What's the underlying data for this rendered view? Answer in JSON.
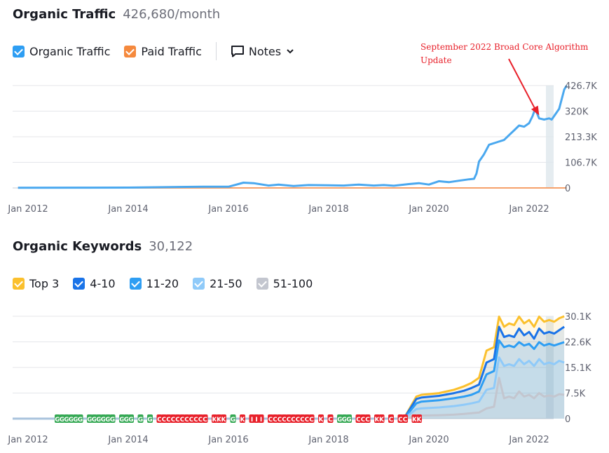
{
  "traffic": {
    "title": "Organic Traffic",
    "metric": "426,680/month",
    "legend": [
      {
        "label": "Organic Traffic",
        "color": "#2e9ef3"
      },
      {
        "label": "Paid Traffic",
        "color": "#f5893d"
      }
    ],
    "notes_label": "Notes"
  },
  "annotation": {
    "text": "September 2022 Broad Core Algorithm Update",
    "color": "#e8202a"
  },
  "keywords": {
    "title": "Organic Keywords",
    "metric": "30,122",
    "legend": [
      {
        "label": "Top 3",
        "color": "#fbc02d"
      },
      {
        "label": "4-10",
        "color": "#1a73e8"
      },
      {
        "label": "11-20",
        "color": "#2e9ef3"
      },
      {
        "label": "21-50",
        "color": "#8fcaf9"
      },
      {
        "label": "51-100",
        "color": "#c3c6cf"
      }
    ]
  },
  "chart_data": [
    {
      "type": "line",
      "title": "Organic Traffic",
      "xlabel": "",
      "ylabel": "",
      "x_tick_labels": [
        "Jan 2012",
        "Jan 2014",
        "Jan 2016",
        "Jan 2018",
        "Jan 2020",
        "Jan 2022"
      ],
      "y_tick_labels": [
        "0",
        "106.7K",
        "213.3K",
        "320K",
        "426.7K"
      ],
      "ylim": [
        0,
        426700
      ],
      "xlim": [
        2011.8,
        2022.75
      ],
      "grid": true,
      "series": [
        {
          "name": "Organic Traffic",
          "color": "#4aa8ef",
          "x": [
            2011.8,
            2013.0,
            2014.0,
            2014.6,
            2015.0,
            2015.5,
            2016.0,
            2016.3,
            2016.5,
            2016.8,
            2017.0,
            2017.3,
            2017.6,
            2018.0,
            2018.3,
            2018.6,
            2018.9,
            2019.1,
            2019.3,
            2019.6,
            2019.8,
            2020.0,
            2020.2,
            2020.4,
            2020.6,
            2020.8,
            2020.9,
            2020.95,
            2021.0,
            2021.1,
            2021.2,
            2021.35,
            2021.5,
            2021.6,
            2021.7,
            2021.8,
            2021.9,
            2022.0,
            2022.07,
            2022.12,
            2022.2,
            2022.3,
            2022.4,
            2022.45,
            2022.5,
            2022.6,
            2022.7,
            2022.75
          ],
          "y": [
            1000,
            1200,
            1500,
            3000,
            4000,
            5000,
            5000,
            22000,
            20000,
            10000,
            14000,
            8000,
            12000,
            11000,
            10000,
            14000,
            10000,
            12000,
            9000,
            16000,
            20000,
            14000,
            28000,
            24000,
            30000,
            36000,
            38000,
            60000,
            110000,
            140000,
            180000,
            190000,
            200000,
            220000,
            240000,
            260000,
            255000,
            270000,
            300000,
            330000,
            290000,
            285000,
            290000,
            285000,
            300000,
            330000,
            410000,
            426700
          ]
        },
        {
          "name": "Paid Traffic",
          "color": "#f5a06a",
          "x": [
            2011.8,
            2022.75
          ],
          "y": [
            0,
            0
          ]
        }
      ]
    },
    {
      "type": "area",
      "title": "Organic Keywords",
      "xlabel": "",
      "ylabel": "",
      "x_tick_labels": [
        "Jan 2012",
        "Jan 2014",
        "Jan 2016",
        "Jan 2018",
        "Jan 2020",
        "Jan 2022"
      ],
      "y_tick_labels": [
        "0",
        "7.5K",
        "15.1K",
        "22.6K",
        "30.1K"
      ],
      "ylim": [
        0,
        30100
      ],
      "xlim": [
        2011.8,
        2022.75
      ],
      "grid": true,
      "x": [
        2011.8,
        2019.5,
        2019.75,
        2019.85,
        2020.2,
        2020.5,
        2020.7,
        2020.85,
        2021.0,
        2021.15,
        2021.3,
        2021.4,
        2021.5,
        2021.6,
        2021.7,
        2021.8,
        2021.9,
        2022.0,
        2022.1,
        2022.2,
        2022.3,
        2022.4,
        2022.5,
        2022.6,
        2022.7
      ],
      "series": [
        {
          "name": "Top 3",
          "color": "#fbc02d",
          "values": [
            0,
            0,
            6500,
            7000,
            7500,
            8500,
            9500,
            10500,
            12000,
            20000,
            21000,
            30000,
            27000,
            28000,
            27500,
            30000,
            28000,
            29000,
            27000,
            30000,
            28500,
            29000,
            28500,
            29500,
            30100
          ]
        },
        {
          "name": "4-10",
          "color": "#1a73e8",
          "values": [
            0,
            0,
            5800,
            6200,
            6700,
            7500,
            8200,
            9000,
            10000,
            16500,
            17500,
            27000,
            24000,
            24500,
            24000,
            26500,
            24500,
            25500,
            23500,
            26500,
            25000,
            25500,
            25000,
            26000,
            27000
          ]
        },
        {
          "name": "11-20",
          "color": "#2e9ef3",
          "values": [
            0,
            0,
            4500,
            5000,
            5400,
            6000,
            6500,
            7000,
            8000,
            13000,
            14000,
            23000,
            21000,
            21500,
            21000,
            22500,
            21500,
            22000,
            20500,
            22500,
            21500,
            22000,
            21500,
            22000,
            22500
          ]
        },
        {
          "name": "21-50",
          "color": "#8fcaf9",
          "values": [
            0,
            0,
            2800,
            3000,
            3300,
            3700,
            4100,
            4500,
            5000,
            8500,
            9000,
            18000,
            15500,
            16000,
            15500,
            17500,
            16000,
            17000,
            15500,
            17500,
            16000,
            16500,
            16000,
            17000,
            16500
          ]
        },
        {
          "name": "51-100",
          "color": "#c3c6cf",
          "values": [
            0,
            0,
            800,
            900,
            1000,
            1200,
            1400,
            1600,
            1800,
            3000,
            3500,
            12000,
            6000,
            6500,
            6000,
            8000,
            6500,
            7000,
            6000,
            7500,
            6500,
            6800,
            6500,
            7200,
            7000
          ]
        }
      ],
      "annotation_glyphs": "GGGGGG GGGGGG GGG G G CCCCCCCCCCC KKK G K III CCCCCCCCCC K C GGG CCC KK C CC KK"
    }
  ]
}
